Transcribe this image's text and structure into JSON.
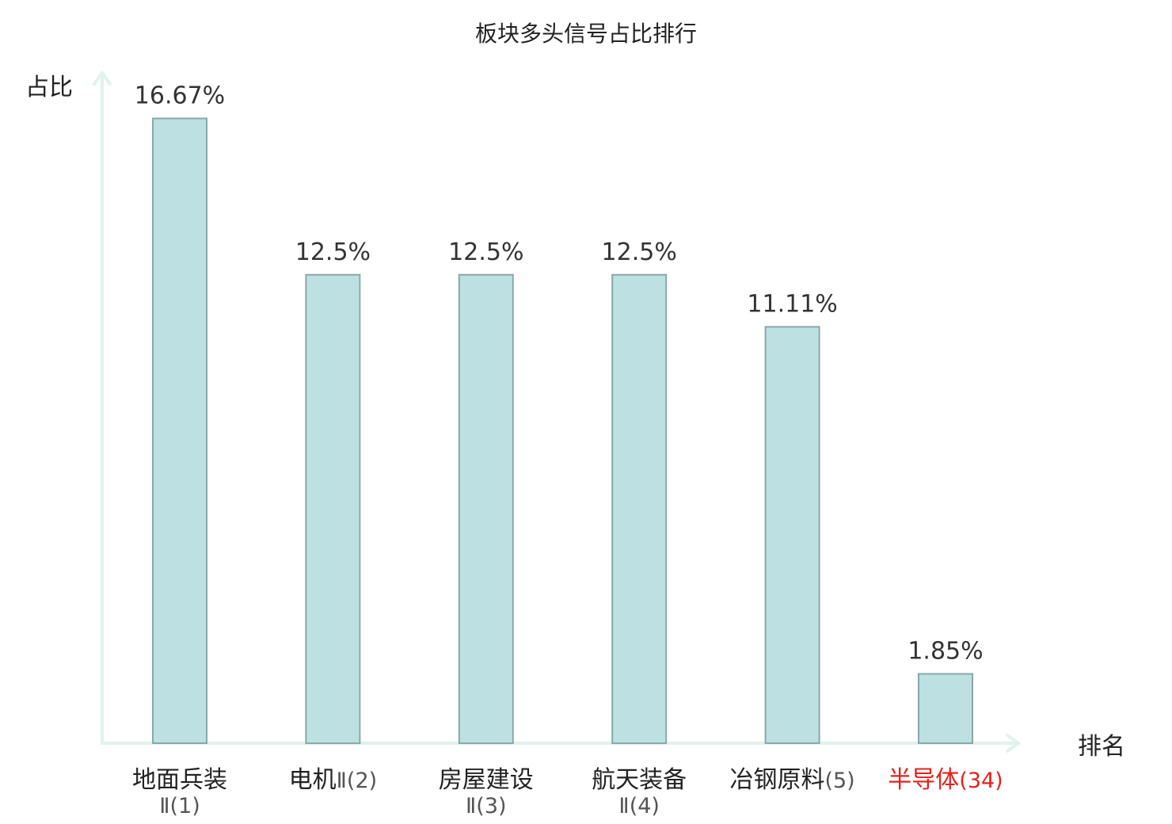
{
  "chart_data": {
    "type": "bar",
    "title": "板块多头信号占比排行",
    "ylabel": "占比",
    "xlabel": "排名",
    "ylim": [
      0,
      18
    ],
    "grid": false,
    "legend": "none",
    "categories": [
      {
        "name": "地面兵装",
        "rank_text": "Ⅱ(1)",
        "highlight": false
      },
      {
        "name": "电机",
        "rank_text": "Ⅱ(2)",
        "highlight": false
      },
      {
        "name": "房屋建设",
        "rank_text": "Ⅱ(3)",
        "highlight": false
      },
      {
        "name": "航天装备",
        "rank_text": "Ⅱ(4)",
        "highlight": false
      },
      {
        "name": "冶钢原料",
        "rank_text": "(5)",
        "highlight": false
      },
      {
        "name": "半导体",
        "rank_text": "(34)",
        "highlight": true
      }
    ],
    "values": [
      16.67,
      12.5,
      12.5,
      12.5,
      11.11,
      1.85
    ],
    "value_labels": [
      "16.67%",
      "12.5%",
      "12.5%",
      "12.5%",
      "11.11%",
      "1.85%"
    ]
  },
  "colors": {
    "bar_fill": "#bde1e3",
    "bar_stroke": "#8aa7a8",
    "axis": "#e0f2ee",
    "label": "#222222",
    "rank_label": "#555555",
    "highlight": "#e8201a"
  }
}
